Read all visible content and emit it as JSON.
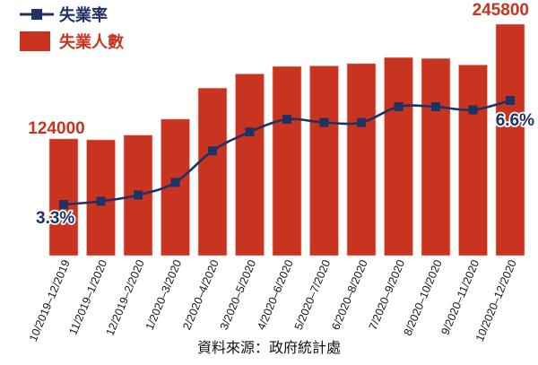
{
  "chart_data": {
    "type": "bar",
    "categories": [
      "10/2019–12/2019",
      "11/2019–1/2020",
      "12/2019–2/2020",
      "1/2020–3/2020",
      "2/2020–4/2020",
      "3/2020–5/2020",
      "4/2020–6/2020",
      "5/2020–7/2020",
      "6/2020–8/2020",
      "7/2020–9/2020",
      "8/2020–10/2020",
      "9/2020–11/2020",
      "10/2020–12/2020"
    ],
    "series": [
      {
        "name": "失業人數",
        "kind": "bar",
        "values": [
          124000,
          123000,
          128000,
          145000,
          178000,
          193000,
          201000,
          201500,
          204000,
          210500,
          209500,
          202500,
          245800
        ]
      },
      {
        "name": "失業率",
        "kind": "line",
        "unit": "%",
        "values": [
          3.3,
          3.4,
          3.6,
          4.0,
          5.0,
          5.6,
          6.0,
          5.9,
          5.9,
          6.4,
          6.4,
          6.3,
          6.6
        ]
      }
    ],
    "annotations": [
      {
        "text": "124000",
        "series": "失業人數",
        "index": 0,
        "color": "#c8341f"
      },
      {
        "text": "245800",
        "series": "失業人數",
        "index": 12,
        "color": "#c8341f"
      },
      {
        "text": "3.3%",
        "series": "失業率",
        "index": 0,
        "color": "#1f3264"
      },
      {
        "text": "6.6%",
        "series": "失業率",
        "index": 12,
        "color": "#1f3264"
      }
    ],
    "legend": {
      "position": "top-left",
      "items": [
        "失業率",
        "失業人數"
      ]
    },
    "grid": false
  },
  "source": "資料來源：政府統計處",
  "colors": {
    "bar": "#c8341f",
    "line": "#1f3264"
  }
}
